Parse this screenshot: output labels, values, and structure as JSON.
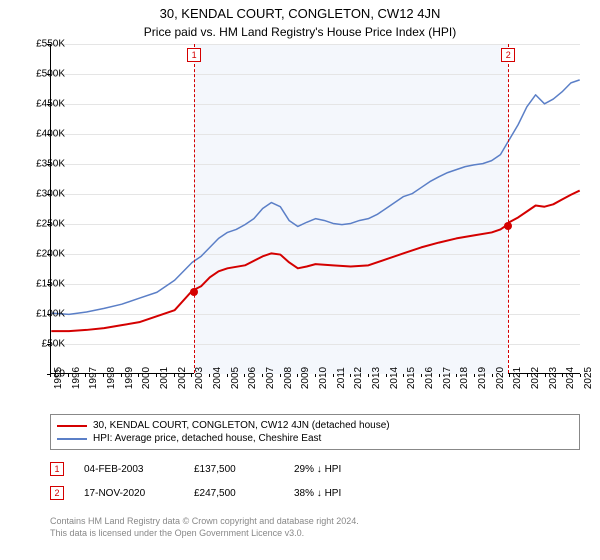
{
  "title_main": "30, KENDAL COURT, CONGLETON, CW12 4JN",
  "title_sub": "Price paid vs. HM Land Registry's House Price Index (HPI)",
  "chart": {
    "type": "line",
    "background_color": "#ffffff",
    "shaded_band_color": "#f4f7fc",
    "grid_color": "#e5e5e5",
    "x_axis": {
      "min_year": 1995,
      "max_year": 2025,
      "tick_step": 1,
      "labels": [
        "1995",
        "1996",
        "1997",
        "1998",
        "1999",
        "2000",
        "2001",
        "2002",
        "2003",
        "2004",
        "2005",
        "2006",
        "2007",
        "2008",
        "2009",
        "2010",
        "2011",
        "2012",
        "2013",
        "2014",
        "2015",
        "2016",
        "2017",
        "2018",
        "2019",
        "2020",
        "2021",
        "2022",
        "2023",
        "2024",
        "2025"
      ],
      "label_fontsize": 10,
      "label_rotation": -90
    },
    "y_axis": {
      "min": 0,
      "max": 550000,
      "tick_step": 50000,
      "labels": [
        "£0",
        "£50K",
        "£100K",
        "£150K",
        "£200K",
        "£250K",
        "£300K",
        "£350K",
        "£400K",
        "£450K",
        "£500K",
        "£550K"
      ],
      "label_fontsize": 10
    },
    "shaded_region": {
      "from_year": 2003.1,
      "to_year": 2020.88
    },
    "series": [
      {
        "name": "property",
        "label": "30, KENDAL COURT, CONGLETON, CW12 4JN (detached house)",
        "color": "#d40000",
        "line_width": 2,
        "points": [
          [
            1995,
            70000
          ],
          [
            1996,
            70000
          ],
          [
            1997,
            72000
          ],
          [
            1998,
            75000
          ],
          [
            1999,
            80000
          ],
          [
            2000,
            85000
          ],
          [
            2001,
            95000
          ],
          [
            2002,
            105000
          ],
          [
            2003,
            137500
          ],
          [
            2003.5,
            145000
          ],
          [
            2004,
            160000
          ],
          [
            2004.5,
            170000
          ],
          [
            2005,
            175000
          ],
          [
            2006,
            180000
          ],
          [
            2007,
            195000
          ],
          [
            2007.5,
            200000
          ],
          [
            2008,
            198000
          ],
          [
            2008.5,
            185000
          ],
          [
            2009,
            175000
          ],
          [
            2009.5,
            178000
          ],
          [
            2010,
            182000
          ],
          [
            2011,
            180000
          ],
          [
            2012,
            178000
          ],
          [
            2013,
            180000
          ],
          [
            2014,
            190000
          ],
          [
            2015,
            200000
          ],
          [
            2016,
            210000
          ],
          [
            2017,
            218000
          ],
          [
            2018,
            225000
          ],
          [
            2019,
            230000
          ],
          [
            2020,
            235000
          ],
          [
            2020.5,
            240000
          ],
          [
            2020.88,
            247500
          ],
          [
            2021,
            252000
          ],
          [
            2021.5,
            260000
          ],
          [
            2022,
            270000
          ],
          [
            2022.5,
            280000
          ],
          [
            2023,
            278000
          ],
          [
            2023.5,
            282000
          ],
          [
            2024,
            290000
          ],
          [
            2024.5,
            298000
          ],
          [
            2025,
            305000
          ]
        ]
      },
      {
        "name": "hpi",
        "label": "HPI: Average price, detached house, Cheshire East",
        "color": "#5b7fc7",
        "line_width": 1.5,
        "points": [
          [
            1995,
            100000
          ],
          [
            1996,
            98000
          ],
          [
            1997,
            102000
          ],
          [
            1998,
            108000
          ],
          [
            1999,
            115000
          ],
          [
            2000,
            125000
          ],
          [
            2001,
            135000
          ],
          [
            2002,
            155000
          ],
          [
            2003,
            185000
          ],
          [
            2003.5,
            195000
          ],
          [
            2004,
            210000
          ],
          [
            2004.5,
            225000
          ],
          [
            2005,
            235000
          ],
          [
            2005.5,
            240000
          ],
          [
            2006,
            248000
          ],
          [
            2006.5,
            258000
          ],
          [
            2007,
            275000
          ],
          [
            2007.5,
            285000
          ],
          [
            2008,
            278000
          ],
          [
            2008.5,
            255000
          ],
          [
            2009,
            245000
          ],
          [
            2009.5,
            252000
          ],
          [
            2010,
            258000
          ],
          [
            2010.5,
            255000
          ],
          [
            2011,
            250000
          ],
          [
            2011.5,
            248000
          ],
          [
            2012,
            250000
          ],
          [
            2012.5,
            255000
          ],
          [
            2013,
            258000
          ],
          [
            2013.5,
            265000
          ],
          [
            2014,
            275000
          ],
          [
            2014.5,
            285000
          ],
          [
            2015,
            295000
          ],
          [
            2015.5,
            300000
          ],
          [
            2016,
            310000
          ],
          [
            2016.5,
            320000
          ],
          [
            2017,
            328000
          ],
          [
            2017.5,
            335000
          ],
          [
            2018,
            340000
          ],
          [
            2018.5,
            345000
          ],
          [
            2019,
            348000
          ],
          [
            2019.5,
            350000
          ],
          [
            2020,
            355000
          ],
          [
            2020.5,
            365000
          ],
          [
            2021,
            390000
          ],
          [
            2021.5,
            415000
          ],
          [
            2022,
            445000
          ],
          [
            2022.5,
            465000
          ],
          [
            2023,
            450000
          ],
          [
            2023.5,
            458000
          ],
          [
            2024,
            470000
          ],
          [
            2024.5,
            485000
          ],
          [
            2025,
            490000
          ]
        ]
      }
    ],
    "sale_markers": [
      {
        "n": "1",
        "year": 2003.1,
        "price": 137500,
        "color": "#d40000"
      },
      {
        "n": "2",
        "year": 2020.88,
        "price": 247500,
        "color": "#d40000"
      }
    ]
  },
  "legend": {
    "border_color": "#888888",
    "fontsize": 10,
    "rows": [
      {
        "color": "#d40000",
        "label": "30, KENDAL COURT, CONGLETON, CW12 4JN (detached house)"
      },
      {
        "color": "#5b7fc7",
        "label": "HPI: Average price, detached house, Cheshire East"
      }
    ]
  },
  "sales_table": {
    "rows": [
      {
        "n": "1",
        "date": "04-FEB-2003",
        "price": "£137,500",
        "diff": "29% ↓ HPI",
        "color": "#d40000"
      },
      {
        "n": "2",
        "date": "17-NOV-2020",
        "price": "£247,500",
        "diff": "38% ↓ HPI",
        "color": "#d40000"
      }
    ]
  },
  "footer": {
    "line1": "Contains HM Land Registry data © Crown copyright and database right 2024.",
    "line2": "This data is licensed under the Open Government Licence v3.0.",
    "color": "#888888",
    "fontsize": 9
  }
}
